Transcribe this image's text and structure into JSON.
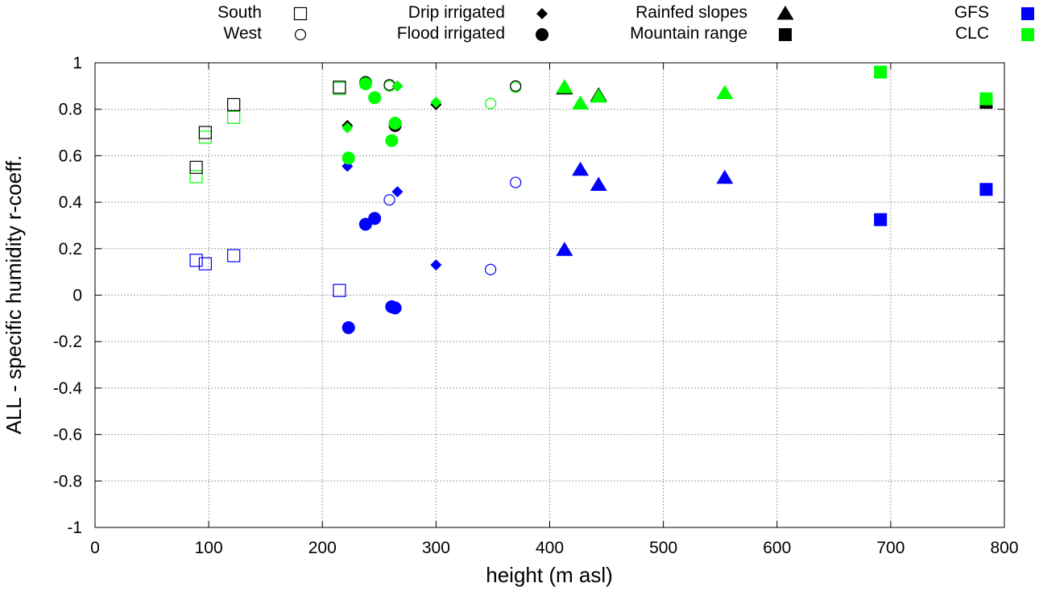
{
  "chart_data": {
    "type": "scatter",
    "title": "",
    "xlabel": "height (m asl)",
    "ylabel": "ALL - specific humidity r-coeff.",
    "xlim": [
      0,
      800
    ],
    "ylim": [
      -1,
      1
    ],
    "x_ticks": [
      0,
      100,
      200,
      300,
      400,
      500,
      600,
      700,
      800
    ],
    "y_ticks": [
      -1,
      -0.8,
      -0.6,
      -0.4,
      -0.2,
      0,
      0.2,
      0.4,
      0.6,
      0.8,
      1
    ],
    "grid": true,
    "colors": {
      "GFS": "#0000ff",
      "CLC": "#00ff00",
      "black": "#000000"
    },
    "legend": {
      "shape_entries": [
        {
          "label": "South",
          "marker": "square-open"
        },
        {
          "label": "West",
          "marker": "circle-open"
        },
        {
          "label": "Drip irrigated",
          "marker": "diamond"
        },
        {
          "label": "Flood irrigated",
          "marker": "circle"
        },
        {
          "label": "Rainfed slopes",
          "marker": "triangle"
        },
        {
          "label": "Mountain range",
          "marker": "square"
        }
      ],
      "color_entries": [
        {
          "label": "GFS",
          "color": "#0000ff"
        },
        {
          "label": "CLC",
          "color": "#00ff00"
        }
      ]
    },
    "series": [
      {
        "name": "South",
        "marker": "square-open",
        "source": "GFS",
        "points": [
          [
            89,
            0.15
          ],
          [
            97,
            0.135
          ],
          [
            122,
            0.17
          ],
          [
            215,
            0.02
          ]
        ]
      },
      {
        "name": "South",
        "marker": "square-open",
        "source": "CLC",
        "points": [
          [
            89,
            0.51
          ],
          [
            97,
            0.68
          ],
          [
            122,
            0.765
          ],
          [
            215,
            0.89
          ]
        ]
      },
      {
        "name": "South",
        "marker": "square-open",
        "source": "black",
        "points": [
          [
            89,
            0.55
          ],
          [
            97,
            0.7
          ],
          [
            122,
            0.82
          ],
          [
            215,
            0.895
          ]
        ]
      },
      {
        "name": "West",
        "marker": "circle-open",
        "source": "GFS",
        "points": [
          [
            259,
            0.41
          ],
          [
            348,
            0.11
          ],
          [
            370,
            0.485
          ]
        ]
      },
      {
        "name": "West",
        "marker": "circle-open",
        "source": "CLC",
        "points": [
          [
            259,
            0.9
          ],
          [
            348,
            0.825
          ],
          [
            370,
            0.895
          ]
        ]
      },
      {
        "name": "West",
        "marker": "circle-open",
        "source": "black",
        "points": [
          [
            259,
            0.905
          ],
          [
            370,
            0.9
          ]
        ]
      },
      {
        "name": "Drip irrigated",
        "marker": "diamond",
        "source": "GFS",
        "points": [
          [
            222,
            0.555
          ],
          [
            266,
            0.445
          ],
          [
            300,
            0.13
          ]
        ]
      },
      {
        "name": "Drip irrigated",
        "marker": "diamond",
        "source": "black",
        "points": [
          [
            222,
            0.73
          ],
          [
            266,
            0.9
          ],
          [
            300,
            0.82
          ]
        ]
      },
      {
        "name": "Drip irrigated",
        "marker": "diamond",
        "source": "CLC",
        "points": [
          [
            222,
            0.72
          ],
          [
            266,
            0.9
          ],
          [
            300,
            0.83
          ]
        ]
      },
      {
        "name": "Flood irrigated",
        "marker": "circle",
        "source": "GFS",
        "points": [
          [
            223,
            -0.14
          ],
          [
            238,
            0.305
          ],
          [
            246,
            0.33
          ],
          [
            261,
            -0.05
          ],
          [
            264,
            -0.055
          ]
        ]
      },
      {
        "name": "Flood irrigated",
        "marker": "circle",
        "source": "black",
        "points": [
          [
            238,
            0.915
          ],
          [
            264,
            0.73
          ]
        ]
      },
      {
        "name": "Flood irrigated",
        "marker": "circle",
        "source": "CLC",
        "points": [
          [
            223,
            0.59
          ],
          [
            238,
            0.91
          ],
          [
            246,
            0.85
          ],
          [
            261,
            0.665
          ],
          [
            264,
            0.74
          ]
        ]
      },
      {
        "name": "Rainfed slopes",
        "marker": "triangle",
        "source": "GFS",
        "points": [
          [
            413,
            0.195
          ],
          [
            427,
            0.54
          ],
          [
            443,
            0.475
          ],
          [
            554,
            0.505
          ]
        ]
      },
      {
        "name": "Rainfed slopes",
        "marker": "triangle",
        "source": "black",
        "points": [
          [
            413,
            0.89
          ],
          [
            443,
            0.86
          ]
        ]
      },
      {
        "name": "Rainfed slopes",
        "marker": "triangle",
        "source": "CLC",
        "points": [
          [
            413,
            0.895
          ],
          [
            427,
            0.825
          ],
          [
            443,
            0.855
          ],
          [
            554,
            0.87
          ]
        ]
      },
      {
        "name": "Mountain range",
        "marker": "square",
        "source": "GFS",
        "points": [
          [
            691,
            0.325
          ],
          [
            784,
            0.455
          ]
        ]
      },
      {
        "name": "Mountain range",
        "marker": "square",
        "source": "black",
        "points": [
          [
            784,
            0.83
          ]
        ]
      },
      {
        "name": "Mountain range",
        "marker": "square",
        "source": "CLC",
        "points": [
          [
            691,
            0.96
          ],
          [
            784,
            0.845
          ]
        ]
      }
    ]
  }
}
